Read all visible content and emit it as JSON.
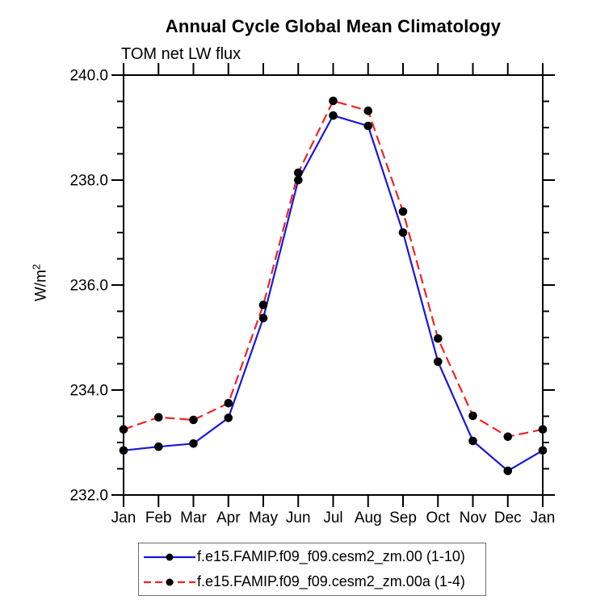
{
  "title": "Annual Cycle Global Mean Climatology",
  "subtitle": "TOM net LW flux",
  "ylabel": {
    "base": "W/m",
    "sup": "2"
  },
  "chart_data": {
    "type": "line",
    "title": "Annual Cycle Global Mean Climatology",
    "subtitle": "TOM net LW flux",
    "xlabel": "",
    "ylabel": "W/m²",
    "categories": [
      "Jan",
      "Feb",
      "Mar",
      "Apr",
      "May",
      "Jun",
      "Jul",
      "Aug",
      "Sep",
      "Oct",
      "Nov",
      "Dec",
      "Jan"
    ],
    "series": [
      {
        "name": "f.e15.FAMIP.f09_f09.cesm2_zm.00 (1-10)",
        "color": "#1717dd",
        "line_style": "solid",
        "marker": "black-dot",
        "values": [
          232.85,
          232.92,
          232.98,
          233.47,
          235.37,
          238.0,
          239.23,
          239.03,
          237.0,
          234.54,
          233.03,
          232.46,
          232.85
        ]
      },
      {
        "name": "f.e15.FAMIP.f09_f09.cesm2_zm.00a (1-4)",
        "color": "#f52222",
        "line_style": "dashed",
        "marker": "black-dot",
        "values": [
          233.25,
          233.48,
          233.43,
          233.75,
          235.62,
          238.14,
          239.51,
          239.32,
          237.4,
          234.98,
          233.51,
          233.11,
          233.25
        ]
      }
    ],
    "marker_color": "#000000",
    "ylim": [
      232.0,
      240.0
    ],
    "y_major_step": 2.0,
    "y_minor_step": 0.5,
    "y_tick_labels": [
      "232.0",
      "234.0",
      "236.0",
      "238.0",
      "240.0"
    ],
    "grid": false,
    "legend_position": "bottom"
  }
}
